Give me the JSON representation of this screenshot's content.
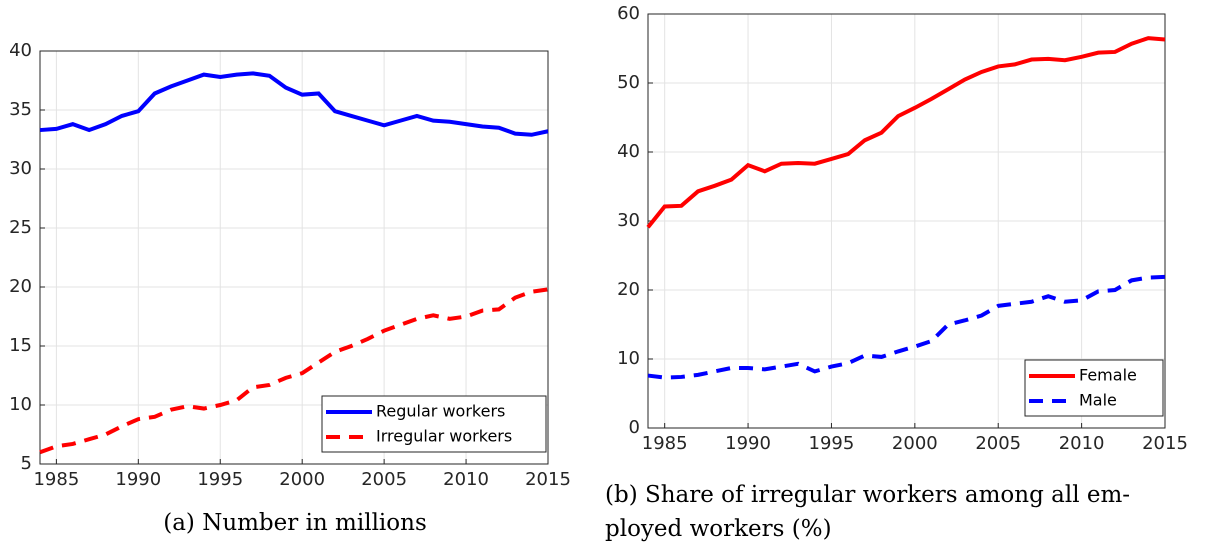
{
  "chart_data": [
    {
      "type": "line",
      "caption": [
        "(a) Number in millions"
      ],
      "x": [
        1984,
        1985,
        1986,
        1987,
        1988,
        1989,
        1990,
        1991,
        1992,
        1993,
        1994,
        1995,
        1996,
        1997,
        1998,
        1999,
        2000,
        2001,
        2002,
        2003,
        2004,
        2005,
        2006,
        2007,
        2008,
        2009,
        2010,
        2011,
        2012,
        2013,
        2014,
        2015
      ],
      "series": [
        {
          "name": "Regular workers",
          "color": "#0000ff",
          "style": "solid",
          "values": [
            33.3,
            33.4,
            33.8,
            33.3,
            33.8,
            34.5,
            34.9,
            36.4,
            37.0,
            37.5,
            38.0,
            37.8,
            38.0,
            38.1,
            37.9,
            36.9,
            36.3,
            36.4,
            34.9,
            34.5,
            34.1,
            33.7,
            34.1,
            34.5,
            34.1,
            34.0,
            33.8,
            33.6,
            33.5,
            33.0,
            32.9,
            33.2
          ]
        },
        {
          "name": "Irregular workers",
          "color": "#ff0000",
          "style": "dashed",
          "values": [
            6.0,
            6.5,
            6.7,
            7.1,
            7.5,
            8.2,
            8.8,
            9.0,
            9.6,
            9.9,
            9.7,
            10.0,
            10.4,
            11.5,
            11.7,
            12.3,
            12.7,
            13.6,
            14.5,
            15.0,
            15.6,
            16.3,
            16.8,
            17.3,
            17.6,
            17.3,
            17.5,
            18.0,
            18.1,
            19.1,
            19.6,
            19.8
          ]
        }
      ],
      "xlim": [
        1984,
        2015
      ],
      "xticks": [
        1985,
        1990,
        1995,
        2000,
        2005,
        2010,
        2015
      ],
      "ylim": [
        5,
        40
      ],
      "yticks": [
        5,
        10,
        15,
        20,
        25,
        30,
        35,
        40
      ],
      "grid": true,
      "legend": "lower right"
    },
    {
      "type": "line",
      "caption": [
        "(b) Share of irregular workers among all em-",
        "ployed workers (%)"
      ],
      "x": [
        1984,
        1985,
        1986,
        1987,
        1988,
        1989,
        1990,
        1991,
        1992,
        1993,
        1994,
        1995,
        1996,
        1997,
        1998,
        1999,
        2000,
        2001,
        2002,
        2003,
        2004,
        2005,
        2006,
        2007,
        2008,
        2009,
        2010,
        2011,
        2012,
        2013,
        2014,
        2015
      ],
      "series": [
        {
          "name": "Female",
          "color": "#ff0000",
          "style": "solid",
          "values": [
            29.1,
            32.1,
            32.2,
            34.3,
            35.1,
            36.0,
            38.1,
            37.2,
            38.3,
            38.4,
            38.3,
            39.0,
            39.7,
            41.7,
            42.8,
            45.2,
            46.4,
            47.7,
            49.1,
            50.5,
            51.6,
            52.4,
            52.7,
            53.4,
            53.5,
            53.3,
            53.8,
            54.4,
            54.5,
            55.7,
            56.5,
            56.3
          ]
        },
        {
          "name": "Male",
          "color": "#0000ff",
          "style": "dashed",
          "values": [
            7.6,
            7.3,
            7.4,
            7.7,
            8.2,
            8.7,
            8.7,
            8.5,
            8.9,
            9.3,
            8.2,
            8.9,
            9.4,
            10.5,
            10.3,
            11.1,
            11.8,
            12.6,
            15.0,
            15.6,
            16.3,
            17.7,
            18.0,
            18.3,
            19.1,
            18.3,
            18.5,
            19.8,
            20.0,
            21.4,
            21.8,
            21.9
          ]
        }
      ],
      "xlim": [
        1984,
        2015
      ],
      "xticks": [
        1985,
        1990,
        1995,
        2000,
        2005,
        2010,
        2015
      ],
      "ylim": [
        0,
        60
      ],
      "yticks": [
        0,
        10,
        20,
        30,
        40,
        50,
        60
      ],
      "grid": true,
      "legend": "lower right"
    }
  ]
}
